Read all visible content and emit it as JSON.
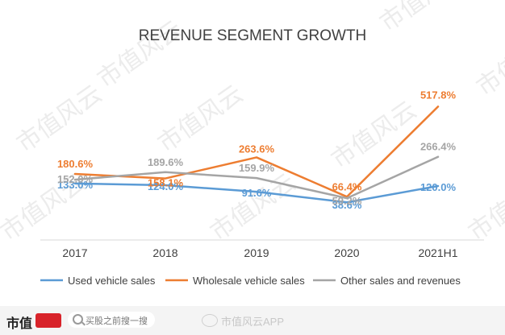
{
  "chart_data": {
    "type": "line",
    "title": "REVENUE SEGMENT GROWTH",
    "categories": [
      "2017",
      "2018",
      "2019",
      "2020",
      "2021H1"
    ],
    "series": [
      {
        "name": "Used vehicle sales",
        "values": [
          133.0,
          124.0,
          91.6,
          38.6,
          120.0
        ],
        "labels": [
          "133.0%",
          "124.0%",
          "91.6%",
          "38.6%",
          "120.0%"
        ],
        "color": "#5b9bd5"
      },
      {
        "name": "Wholesale vehicle sales",
        "values": [
          180.6,
          158.1,
          263.6,
          66.4,
          517.8
        ],
        "labels": [
          "180.6%",
          "158.1%",
          "263.6%",
          "66.4%",
          "517.8%"
        ],
        "color": "#ed7d31"
      },
      {
        "name": "Other sales and revenues",
        "values": [
          152.0,
          189.6,
          159.9,
          59.2,
          266.4
        ],
        "labels": [
          "152.0%",
          "189.6%",
          "159.9%",
          "59.2%",
          "266.4%"
        ],
        "color": "#a5a5a5"
      }
    ],
    "ylim": [
      -150,
      600
    ],
    "grid": false,
    "legend": "bottom"
  },
  "watermark": {
    "text": "市值风云",
    "footer_text": "市值风云APP"
  },
  "footer": {
    "brand": "市值",
    "search_placeholder": "买股之前搜一搜"
  },
  "colors": {
    "axis": "#d9d9d9",
    "title": "#404040",
    "tick": "#404040",
    "watermark": "#ececec"
  }
}
